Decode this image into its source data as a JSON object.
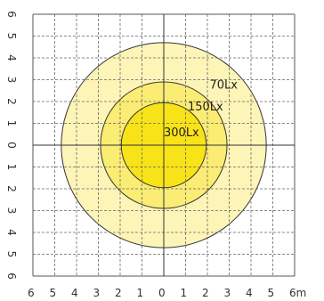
{
  "chart_data": {
    "type": "illuminance-contour",
    "x_unit": "m",
    "x_range": [
      -6,
      6
    ],
    "y_range": [
      -6,
      6
    ],
    "x_tick_labels": [
      "6",
      "5",
      "4",
      "3",
      "2",
      "1",
      "0",
      "1",
      "2",
      "3",
      "4",
      "5",
      "6m"
    ],
    "y_tick_labels": [
      "6",
      "5",
      "4",
      "3",
      "2",
      "1",
      "0",
      "1",
      "2",
      "3",
      "4",
      "5",
      "6"
    ],
    "grid": true,
    "zones": [
      {
        "label": "70Lx",
        "illuminance_lx": 70,
        "radius_m": 4.7,
        "color": "#fdf5b8"
      },
      {
        "label": "150Lx",
        "illuminance_lx": 150,
        "radius_m": 2.9,
        "color": "#fbec74"
      },
      {
        "label": "300Lx",
        "illuminance_lx": 300,
        "radius_m": 1.95,
        "color": "#f7e317"
      }
    ]
  }
}
